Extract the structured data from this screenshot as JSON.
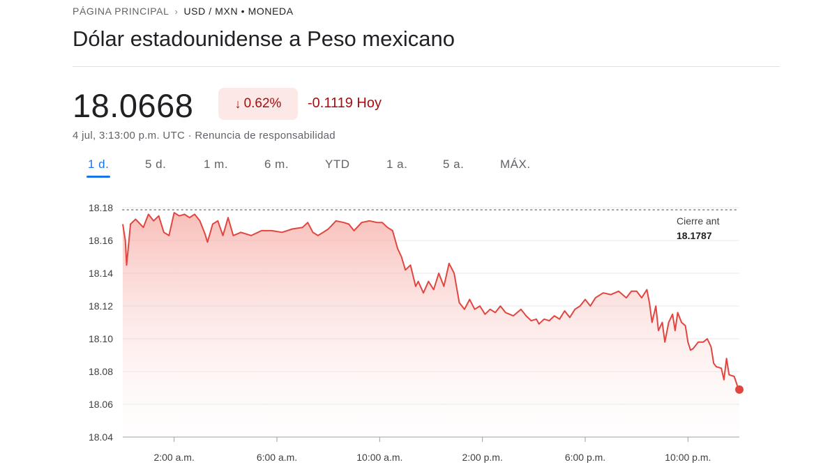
{
  "breadcrumb": {
    "home": "PÁGINA PRINCIPAL",
    "separator": "›",
    "current": "USD / MXN • MONEDA"
  },
  "title": "Dólar estadounidense a Peso mexicano",
  "quote": {
    "price": "18.0668",
    "change_percent": "0.62%",
    "change_abs": "-0.1119 Hoy",
    "timestamp": "4 jul, 3:13:00 p.m. UTC · Renuncia de responsabilidad"
  },
  "colors": {
    "negative": "#a50e0e",
    "line": "#e0463f",
    "accent": "#1a73e8"
  },
  "tabs": [
    {
      "label": "1 d.",
      "active": true
    },
    {
      "label": "5 d.",
      "active": false
    },
    {
      "label": "1 m.",
      "active": false
    },
    {
      "label": "6 m.",
      "active": false
    },
    {
      "label": "YTD",
      "active": false
    },
    {
      "label": "1 a.",
      "active": false
    },
    {
      "label": "5 a.",
      "active": false
    },
    {
      "label": "MÁX.",
      "active": false
    }
  ],
  "chart_data": {
    "type": "area",
    "x_unit": "hours since 12:00 a.m. (4 jul)",
    "x_range": [
      0,
      24
    ],
    "ylim": [
      18.04,
      18.18
    ],
    "y_ticks": [
      "18.18",
      "18.16",
      "18.14",
      "18.12",
      "18.10",
      "18.08",
      "18.06",
      "18.04"
    ],
    "y_tick_values": [
      18.18,
      18.16,
      18.14,
      18.12,
      18.1,
      18.08,
      18.06,
      18.04
    ],
    "x_ticks": [
      "2:00 a.m.",
      "6:00 a.m.",
      "10:00 a.m.",
      "2:00 p.m.",
      "6:00 p.m.",
      "10:00 p.m."
    ],
    "x_tick_values": [
      2,
      6,
      10,
      14,
      18,
      22
    ],
    "previous_close": {
      "label": "Cierre ant",
      "value": 18.1787,
      "value_label": "18.1787"
    },
    "grid": true,
    "series": [
      {
        "values": [
          [
            0.0,
            18.17
          ],
          [
            0.1,
            18.16
          ],
          [
            0.15,
            18.145
          ],
          [
            0.3,
            18.17
          ],
          [
            0.5,
            18.173
          ],
          [
            0.8,
            18.168
          ],
          [
            1.0,
            18.176
          ],
          [
            1.2,
            18.172
          ],
          [
            1.4,
            18.175
          ],
          [
            1.6,
            18.165
          ],
          [
            1.8,
            18.163
          ],
          [
            2.0,
            18.177
          ],
          [
            2.2,
            18.175
          ],
          [
            2.4,
            18.176
          ],
          [
            2.6,
            18.174
          ],
          [
            2.8,
            18.176
          ],
          [
            3.0,
            18.172
          ],
          [
            3.2,
            18.164
          ],
          [
            3.3,
            18.159
          ],
          [
            3.5,
            18.17
          ],
          [
            3.7,
            18.172
          ],
          [
            3.9,
            18.163
          ],
          [
            4.1,
            18.174
          ],
          [
            4.3,
            18.163
          ],
          [
            4.6,
            18.165
          ],
          [
            5.0,
            18.163
          ],
          [
            5.4,
            18.166
          ],
          [
            5.8,
            18.166
          ],
          [
            6.2,
            18.165
          ],
          [
            6.6,
            18.167
          ],
          [
            7.0,
            18.168
          ],
          [
            7.2,
            18.171
          ],
          [
            7.4,
            18.165
          ],
          [
            7.6,
            18.163
          ],
          [
            7.8,
            18.165
          ],
          [
            8.0,
            18.167
          ],
          [
            8.3,
            18.172
          ],
          [
            8.6,
            18.171
          ],
          [
            8.8,
            18.17
          ],
          [
            9.0,
            18.166
          ],
          [
            9.3,
            18.171
          ],
          [
            9.6,
            18.172
          ],
          [
            9.9,
            18.171
          ],
          [
            10.1,
            18.171
          ],
          [
            10.3,
            18.168
          ],
          [
            10.5,
            18.166
          ],
          [
            10.7,
            18.155
          ],
          [
            10.85,
            18.15
          ],
          [
            11.0,
            18.142
          ],
          [
            11.2,
            18.145
          ],
          [
            11.4,
            18.132
          ],
          [
            11.5,
            18.135
          ],
          [
            11.7,
            18.128
          ],
          [
            11.9,
            18.135
          ],
          [
            12.1,
            18.13
          ],
          [
            12.3,
            18.14
          ],
          [
            12.5,
            18.132
          ],
          [
            12.7,
            18.146
          ],
          [
            12.9,
            18.14
          ],
          [
            13.1,
            18.122
          ],
          [
            13.3,
            18.118
          ],
          [
            13.5,
            18.124
          ],
          [
            13.7,
            18.118
          ],
          [
            13.9,
            18.12
          ],
          [
            14.1,
            18.115
          ],
          [
            14.3,
            18.118
          ],
          [
            14.5,
            18.116
          ],
          [
            14.7,
            18.12
          ],
          [
            14.9,
            18.116
          ],
          [
            15.2,
            18.114
          ],
          [
            15.5,
            18.118
          ],
          [
            15.7,
            18.114
          ],
          [
            15.9,
            18.111
          ],
          [
            16.1,
            18.112
          ],
          [
            16.2,
            18.109
          ],
          [
            16.4,
            18.112
          ],
          [
            16.6,
            18.111
          ],
          [
            16.8,
            18.114
          ],
          [
            17.0,
            18.112
          ],
          [
            17.2,
            18.117
          ],
          [
            17.4,
            18.113
          ],
          [
            17.6,
            18.118
          ],
          [
            17.8,
            18.12
          ],
          [
            18.0,
            18.124
          ],
          [
            18.2,
            18.12
          ],
          [
            18.4,
            18.125
          ],
          [
            18.7,
            18.128
          ],
          [
            19.0,
            18.127
          ],
          [
            19.3,
            18.129
          ],
          [
            19.6,
            18.125
          ],
          [
            19.8,
            18.129
          ],
          [
            20.0,
            18.129
          ],
          [
            20.2,
            18.125
          ],
          [
            20.4,
            18.13
          ],
          [
            20.5,
            18.122
          ],
          [
            20.6,
            18.11
          ],
          [
            20.75,
            18.12
          ],
          [
            20.85,
            18.105
          ],
          [
            21.0,
            18.11
          ],
          [
            21.1,
            18.098
          ],
          [
            21.25,
            18.11
          ],
          [
            21.4,
            18.115
          ],
          [
            21.5,
            18.105
          ],
          [
            21.6,
            18.116
          ],
          [
            21.75,
            18.11
          ],
          [
            21.9,
            18.108
          ],
          [
            22.0,
            18.098
          ],
          [
            22.1,
            18.093
          ],
          [
            22.2,
            18.094
          ],
          [
            22.4,
            18.098
          ],
          [
            22.6,
            18.098
          ],
          [
            22.75,
            18.1
          ],
          [
            22.9,
            18.095
          ],
          [
            23.0,
            18.085
          ],
          [
            23.1,
            18.083
          ],
          [
            23.3,
            18.082
          ],
          [
            23.4,
            18.075
          ],
          [
            23.5,
            18.088
          ],
          [
            23.6,
            18.078
          ],
          [
            23.8,
            18.077
          ],
          [
            23.95,
            18.07
          ],
          [
            24.0,
            18.069
          ]
        ]
      }
    ]
  }
}
